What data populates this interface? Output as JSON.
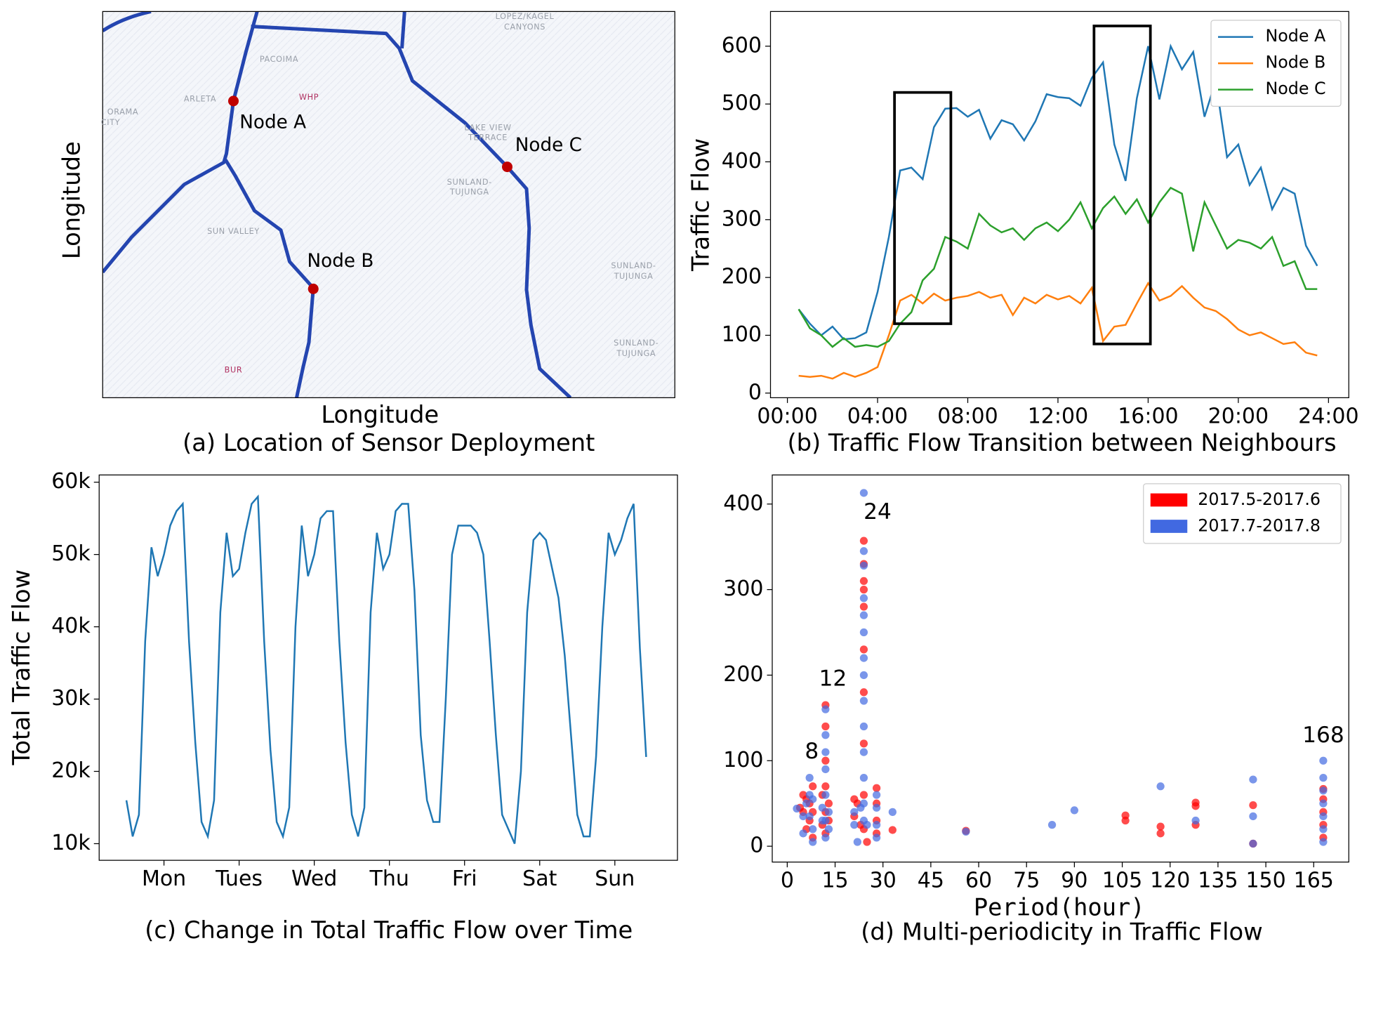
{
  "chart_data": [
    {
      "type": "map",
      "title": "(a) Location of Sensor Deployment",
      "xlabel": "Longitude",
      "ylabel": "Longitude",
      "nodes": [
        "Node A",
        "Node B",
        "Node C"
      ],
      "places": [
        "LOPEZ/KAGEL",
        "CANYONS",
        "PACOIMA",
        "ARLETA",
        "WHP",
        "ORAMA",
        "CITY",
        "LAKE VIEW",
        "TERRACE",
        "SUNLAND-",
        "TUJUNGA",
        "SUN VALLEY",
        "SUNLAND-",
        "TUJUNGA",
        "SUNLAND-",
        "TUJUNGA",
        "BUR"
      ]
    },
    {
      "type": "line",
      "title": "(b) Traffic Flow Transition between Neighbours",
      "ylabel": "Traffic Flow",
      "x": [
        0.5,
        1,
        1.5,
        2,
        2.5,
        3,
        3.5,
        4,
        4.5,
        5,
        5.5,
        6,
        6.5,
        7,
        7.5,
        8,
        8.5,
        9,
        9.5,
        10,
        10.5,
        11,
        11.5,
        12,
        12.5,
        13,
        13.5,
        14,
        14.5,
        15,
        15.5,
        16,
        16.5,
        17,
        17.5,
        18,
        18.5,
        19,
        19.5,
        20,
        20.5,
        21,
        21.5,
        22,
        22.5,
        23,
        23.5
      ],
      "series": [
        {
          "name": "Node A",
          "color": "#1f77b4",
          "values": [
            145,
            120,
            100,
            115,
            93,
            95,
            105,
            175,
            270,
            385,
            390,
            370,
            460,
            492,
            493,
            478,
            490,
            440,
            472,
            465,
            437,
            470,
            517,
            512,
            510,
            497,
            545,
            572,
            430,
            367,
            510,
            600,
            508,
            600,
            560,
            590,
            478,
            540,
            408,
            430,
            360,
            390,
            318,
            355,
            345,
            255,
            220
          ]
        },
        {
          "name": "Node B",
          "color": "#ff7f0e",
          "values": [
            30,
            28,
            30,
            25,
            35,
            28,
            35,
            45,
            100,
            160,
            170,
            155,
            172,
            160,
            165,
            168,
            175,
            165,
            170,
            135,
            165,
            155,
            170,
            162,
            168,
            155,
            182,
            90,
            115,
            118,
            155,
            190,
            160,
            168,
            185,
            165,
            148,
            142,
            128,
            110,
            100,
            105,
            95,
            85,
            88,
            70,
            65
          ]
        },
        {
          "name": "Node C",
          "color": "#2ca02c",
          "values": [
            145,
            112,
            100,
            80,
            95,
            80,
            83,
            80,
            90,
            120,
            140,
            195,
            215,
            270,
            262,
            250,
            310,
            290,
            278,
            285,
            265,
            285,
            295,
            280,
            300,
            330,
            285,
            320,
            340,
            310,
            335,
            295,
            330,
            355,
            345,
            245,
            330,
            290,
            250,
            265,
            260,
            250,
            270,
            220,
            228,
            180,
            180
          ]
        }
      ],
      "boxes": [
        {
          "x": [
            4.75,
            7.25
          ],
          "y": [
            120,
            520
          ]
        },
        {
          "x": [
            13.6,
            16.1
          ],
          "y": [
            85,
            635
          ]
        }
      ],
      "xlim": [
        -0.75,
        24.9
      ],
      "ylim": [
        -8,
        660
      ],
      "xticks": [
        {
          "value": 0,
          "label": "00:00"
        },
        {
          "value": 4,
          "label": "04:00"
        },
        {
          "value": 8,
          "label": "08:00"
        },
        {
          "value": 12,
          "label": "12:00"
        },
        {
          "value": 16,
          "label": "16:00"
        },
        {
          "value": 20,
          "label": "20:00"
        },
        {
          "value": 24,
          "label": "24:00"
        }
      ],
      "yticks": [
        0,
        100,
        200,
        300,
        400,
        500,
        600
      ],
      "legend": "upper right"
    },
    {
      "type": "line",
      "title": "(c) Change in Total Traffic Flow over Time",
      "ylabel": "Total Traffic Flow",
      "x": [
        0,
        2,
        4,
        6,
        8,
        10,
        12,
        14,
        16,
        18,
        20,
        22,
        24,
        26,
        28,
        30,
        32,
        34,
        36,
        38,
        40,
        42,
        44,
        46,
        48,
        50,
        52,
        54,
        56,
        58,
        60,
        62,
        64,
        66,
        68,
        70,
        72,
        74,
        76,
        78,
        80,
        82,
        84,
        86,
        88,
        90,
        92,
        94,
        96,
        98,
        100,
        102,
        104,
        106,
        108,
        110,
        112,
        114,
        116,
        118,
        120,
        122,
        124,
        126,
        128,
        130,
        132,
        134,
        136,
        138,
        140,
        142,
        144,
        146,
        148,
        150,
        152,
        154,
        156,
        158,
        160,
        162,
        164,
        166
      ],
      "series": [
        {
          "color": "#1f77b4",
          "values": [
            16000,
            11000,
            14000,
            38000,
            51000,
            47000,
            50000,
            54000,
            56000,
            57000,
            38000,
            24000,
            13000,
            11000,
            16000,
            42000,
            53000,
            47000,
            48000,
            53000,
            57000,
            58000,
            38000,
            23000,
            13000,
            11000,
            15000,
            40000,
            54000,
            47000,
            50000,
            55000,
            56000,
            56000,
            38000,
            24000,
            14000,
            11000,
            15000,
            42000,
            53000,
            48000,
            50000,
            56000,
            57000,
            57000,
            45000,
            25000,
            16000,
            13000,
            13000,
            30000,
            50000,
            54000,
            54000,
            54000,
            53000,
            50000,
            38000,
            25000,
            14000,
            12000,
            10000,
            20000,
            42000,
            52000,
            53000,
            52000,
            48000,
            44000,
            36000,
            25000,
            14000,
            11000,
            11000,
            22000,
            40000,
            53000,
            50000,
            52000,
            55000,
            57000,
            37000,
            22000
          ]
        }
      ],
      "xlim": [
        -8.7,
        176
      ],
      "ylim": [
        7700,
        61000
      ],
      "xticks": [
        {
          "value": 12,
          "label": "Mon"
        },
        {
          "value": 36,
          "label": "Tues"
        },
        {
          "value": 60,
          "label": "Wed"
        },
        {
          "value": 84,
          "label": "Thu"
        },
        {
          "value": 108,
          "label": "Fri"
        },
        {
          "value": 132,
          "label": "Sat"
        },
        {
          "value": 156,
          "label": "Sun"
        }
      ],
      "yticks": [
        {
          "value": 10000,
          "label": "10k"
        },
        {
          "value": 20000,
          "label": "20k"
        },
        {
          "value": 30000,
          "label": "30k"
        },
        {
          "value": 40000,
          "label": "40k"
        },
        {
          "value": 50000,
          "label": "50k"
        },
        {
          "value": 60000,
          "label": "60k"
        }
      ]
    },
    {
      "type": "scatter",
      "title": "(d) Multi-periodicity in Traffic Flow",
      "xlabel": "Period(hour)",
      "series": [
        {
          "name": "2017.5-2017.6",
          "color": "#ff0000",
          "x": [
            4,
            5,
            5,
            6,
            6,
            7,
            7,
            8,
            8,
            8,
            11,
            11,
            12,
            12,
            12,
            12,
            12,
            12,
            13,
            13,
            21,
            21,
            22,
            24,
            24,
            24,
            24,
            24,
            24,
            24,
            24,
            24,
            24,
            25,
            23,
            28,
            28,
            28,
            28,
            33,
            56,
            106,
            106,
            117,
            117,
            128,
            128,
            128,
            146,
            146,
            168,
            168,
            168,
            168,
            168
          ],
          "y": [
            45,
            40,
            60,
            55,
            20,
            50,
            30,
            70,
            10,
            40,
            25,
            60,
            165,
            140,
            100,
            70,
            40,
            15,
            50,
            30,
            55,
            35,
            50,
            357,
            330,
            310,
            300,
            280,
            230,
            180,
            120,
            60,
            20,
            5,
            25,
            68,
            50,
            30,
            15,
            19,
            18,
            36,
            30,
            23,
            15,
            51,
            47,
            25,
            48,
            3,
            67,
            55,
            40,
            25,
            10
          ]
        },
        {
          "name": "2017.7-2017.8",
          "color": "#4169e1",
          "x": [
            3,
            5,
            5,
            6,
            7,
            7,
            7,
            8,
            8,
            8,
            11,
            11,
            12,
            12,
            12,
            12,
            12,
            12,
            12,
            13,
            13,
            21,
            21,
            22,
            23,
            24,
            24,
            24,
            24,
            24,
            24,
            24,
            24,
            24,
            24,
            24,
            24,
            24,
            24,
            25,
            28,
            28,
            28,
            28,
            33,
            56,
            83,
            90,
            117,
            128,
            146,
            146,
            146,
            168,
            168,
            168,
            168,
            168,
            168,
            168
          ],
          "y": [
            44,
            35,
            15,
            50,
            80,
            60,
            35,
            20,
            5,
            55,
            30,
            45,
            160,
            130,
            110,
            90,
            60,
            30,
            10,
            40,
            20,
            40,
            25,
            5,
            45,
            413,
            345,
            328,
            290,
            270,
            250,
            220,
            200,
            170,
            140,
            110,
            80,
            50,
            30,
            25,
            60,
            45,
            25,
            10,
            40,
            17,
            25,
            42,
            70,
            30,
            78,
            35,
            3,
            100,
            80,
            65,
            50,
            35,
            20,
            5
          ]
        }
      ],
      "annotations": [
        {
          "text": "8",
          "x": 7.7,
          "y": 110
        },
        {
          "text": "12",
          "x": 14.3,
          "y": 195
        },
        {
          "text": "24",
          "x": 28.3,
          "y": 390
        },
        {
          "text": "168",
          "x": 168,
          "y": 129
        }
      ],
      "xlim": [
        -4.7,
        176
      ],
      "ylim": [
        -18.5,
        434
      ],
      "xticks": [
        0,
        15,
        30,
        45,
        60,
        75,
        90,
        105,
        120,
        135,
        150,
        165
      ],
      "yticks": [
        0,
        100,
        200,
        300,
        400
      ],
      "legend": "upper right"
    }
  ]
}
